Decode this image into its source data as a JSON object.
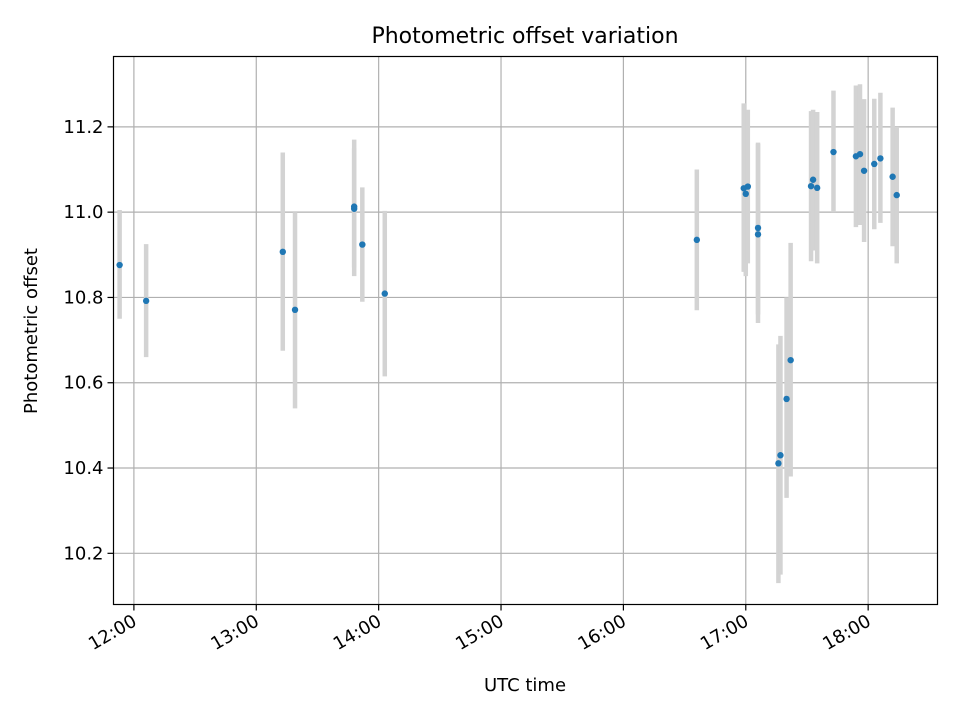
{
  "chart_data": {
    "type": "scatter",
    "title": "Photometric offset variation",
    "xlabel": "UTC time",
    "ylabel": "Photometric offset",
    "x_ticks": [
      "12:00",
      "13:00",
      "14:00",
      "15:00",
      "16:00",
      "17:00",
      "18:00"
    ],
    "y_ticks": [
      "10.2",
      "10.4",
      "10.6",
      "10.8",
      "11.0",
      "11.2"
    ],
    "xlim": [
      "11:50",
      "18:34"
    ],
    "ylim": [
      10.08,
      11.365
    ],
    "grid": true,
    "colors": {
      "points": "#1f77b4",
      "errorbars": "#d3d3d3",
      "grid": "#b0b0b0"
    },
    "points": [
      {
        "time": "11:53",
        "y": 10.876,
        "yerr_low": 10.75,
        "yerr_high": 11.005
      },
      {
        "time": "12:06",
        "y": 10.792,
        "yerr_low": 10.66,
        "yerr_high": 10.925
      },
      {
        "time": "13:13",
        "y": 10.907,
        "yerr_low": 10.675,
        "yerr_high": 11.14
      },
      {
        "time": "13:19",
        "y": 10.771,
        "yerr_low": 10.54,
        "yerr_high": 11.0
      },
      {
        "time": "13:48",
        "y": 11.008,
        "yerr_low": 10.85,
        "yerr_high": 11.17
      },
      {
        "time": "13:48",
        "y": 11.013,
        "yerr_low": 10.87,
        "yerr_high": 11.15
      },
      {
        "time": "13:52",
        "y": 10.924,
        "yerr_low": 10.79,
        "yerr_high": 11.058
      },
      {
        "time": "14:03",
        "y": 10.809,
        "yerr_low": 10.615,
        "yerr_high": 11.003
      },
      {
        "time": "16:36",
        "y": 10.935,
        "yerr_low": 10.77,
        "yerr_high": 11.1
      },
      {
        "time": "16:59",
        "y": 11.056,
        "yerr_low": 10.86,
        "yerr_high": 11.255
      },
      {
        "time": "17:00",
        "y": 11.043,
        "yerr_low": 10.85,
        "yerr_high": 11.235
      },
      {
        "time": "17:01",
        "y": 11.06,
        "yerr_low": 10.88,
        "yerr_high": 11.24
      },
      {
        "time": "17:06",
        "y": 10.963,
        "yerr_low": 10.76,
        "yerr_high": 11.163
      },
      {
        "time": "17:06",
        "y": 10.948,
        "yerr_low": 10.74,
        "yerr_high": 11.16
      },
      {
        "time": "17:16",
        "y": 10.411,
        "yerr_low": 10.13,
        "yerr_high": 10.69
      },
      {
        "time": "17:17",
        "y": 10.43,
        "yerr_low": 10.15,
        "yerr_high": 10.71
      },
      {
        "time": "17:20",
        "y": 10.562,
        "yerr_low": 10.33,
        "yerr_high": 10.8
      },
      {
        "time": "17:22",
        "y": 10.653,
        "yerr_low": 10.38,
        "yerr_high": 10.928
      },
      {
        "time": "17:32",
        "y": 11.061,
        "yerr_low": 10.885,
        "yerr_high": 11.237
      },
      {
        "time": "17:33",
        "y": 11.076,
        "yerr_low": 10.91,
        "yerr_high": 11.24
      },
      {
        "time": "17:35",
        "y": 11.057,
        "yerr_low": 10.88,
        "yerr_high": 11.235
      },
      {
        "time": "17:43",
        "y": 11.141,
        "yerr_low": 11.0,
        "yerr_high": 11.285
      },
      {
        "time": "17:54",
        "y": 11.131,
        "yerr_low": 10.965,
        "yerr_high": 11.297
      },
      {
        "time": "17:56",
        "y": 11.136,
        "yerr_low": 10.97,
        "yerr_high": 11.3
      },
      {
        "time": "17:58",
        "y": 11.097,
        "yerr_low": 10.93,
        "yerr_high": 11.265
      },
      {
        "time": "18:03",
        "y": 11.113,
        "yerr_low": 10.96,
        "yerr_high": 11.266
      },
      {
        "time": "18:06",
        "y": 11.126,
        "yerr_low": 10.975,
        "yerr_high": 11.28
      },
      {
        "time": "18:12",
        "y": 11.083,
        "yerr_low": 10.92,
        "yerr_high": 11.245
      },
      {
        "time": "18:14",
        "y": 11.04,
        "yerr_low": 10.88,
        "yerr_high": 11.2
      }
    ]
  }
}
